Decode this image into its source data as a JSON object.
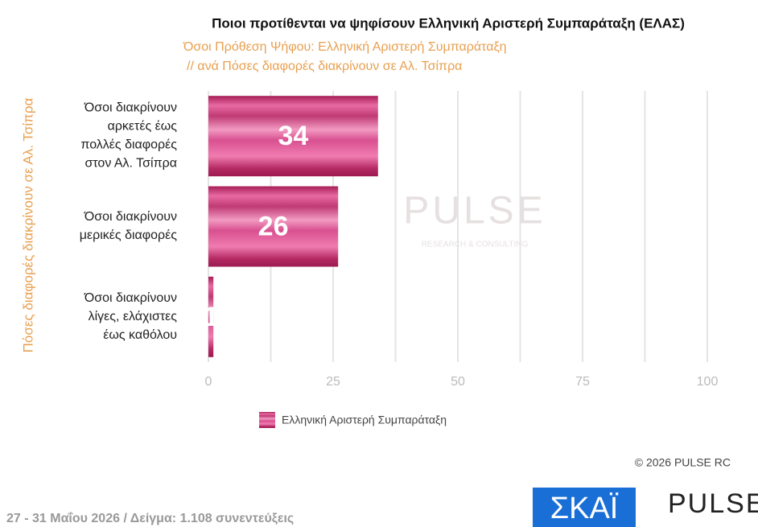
{
  "chart_data": {
    "type": "bar",
    "orientation": "horizontal",
    "title": "Ποιοι προτίθενται να ψηφίσουν Ελληνική Αριστερή Συμπαράταξη (ΕΛΑΣ)",
    "subtitle": [
      "Όσοι Πρόθεση Ψήφου: Ελληνική Αριστερή Συμπαράταξη",
      "// ανά Πόσες διαφορές διακρίνουν σε Αλ. Τσίπρα"
    ],
    "ylabel": "Πόσες διαφορές διακρίνουν σε Αλ. Τσίπρα",
    "categories": [
      "Όσοι διακρίνουν\nαρκετές έως\nπολλές διαφορές\nστον Αλ. Τσίπρα",
      "Όσοι διακρίνουν\nμερικές διαφορές",
      "Όσοι διακρίνουν\nλίγες, ελάχιστες\nέως καθόλου"
    ],
    "series": [
      {
        "name": "Ελληνική Αριστερή Συμπαράταξη",
        "color": "#c8306f",
        "values": [
          34,
          26,
          1
        ]
      }
    ],
    "xlim": [
      0,
      100
    ],
    "xticks": [
      0,
      25,
      50,
      75,
      100
    ],
    "grid": true,
    "legend": "bottom",
    "watermark": [
      "PULSE",
      "RESEARCH & CONSULTING"
    ],
    "copyright": "© 2026  PULSE RC",
    "footer": "27 - 31  Μαΐου 2026  /  Δείγμα:  1.108 συνεντεύξεις",
    "logos": [
      "ΣΚΑΪ",
      "PULSE"
    ]
  }
}
